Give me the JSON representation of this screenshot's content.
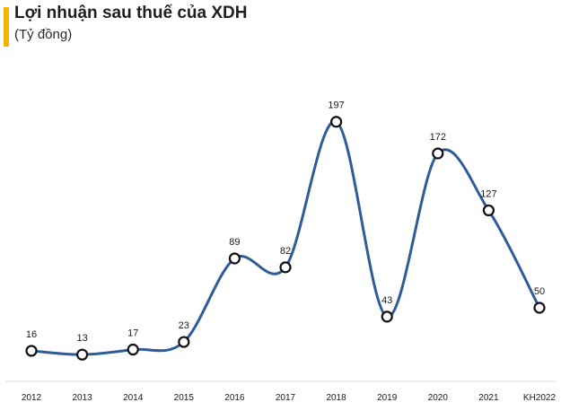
{
  "header": {
    "title": "Lợi nhuận sau thuế của XDH",
    "subtitle": "(Tỷ đồng)"
  },
  "colors": {
    "accent_bar": "#f4b400",
    "line": "#2e5c9a",
    "marker_fill": "#ffffff",
    "marker_stroke": "#111111",
    "axis": "#d9d9d9"
  },
  "chart_data": {
    "type": "line",
    "title": "Lợi nhuận sau thuế của XDH",
    "subtitle": "(Tỷ đồng)",
    "categories": [
      "2012",
      "2013",
      "2014",
      "2015",
      "2016",
      "2017",
      "2018",
      "2019",
      "2020",
      "2021",
      "KH2022"
    ],
    "values": [
      16,
      13,
      17,
      23,
      89,
      82,
      197,
      43,
      172,
      127,
      50
    ],
    "xlabel": "",
    "ylabel": "",
    "ylim": [
      0,
      210
    ],
    "smooth": true,
    "grid": false,
    "data_labels": true,
    "legend": "none"
  }
}
